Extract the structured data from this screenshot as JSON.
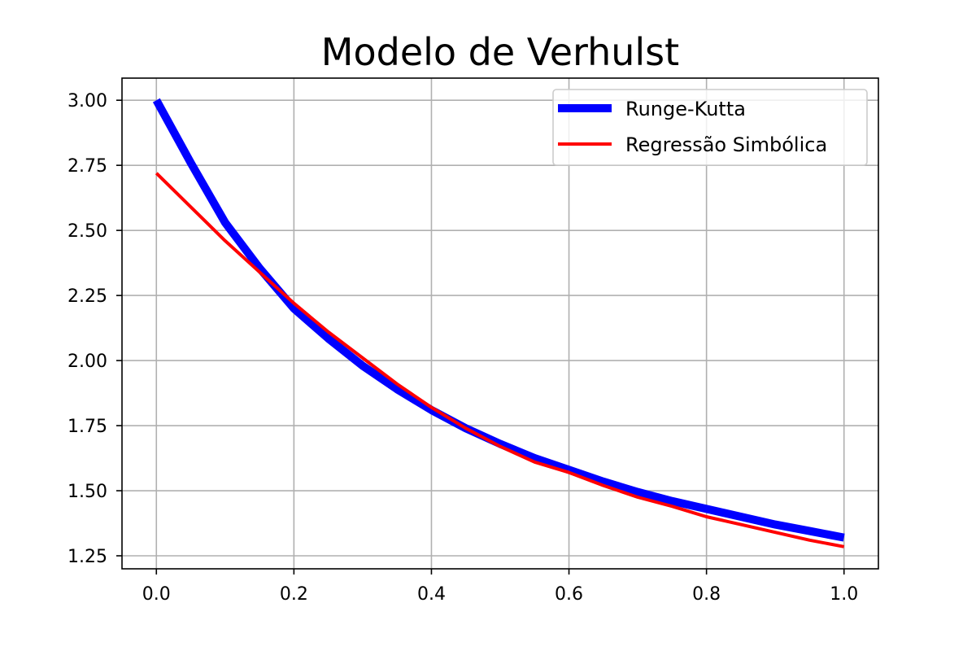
{
  "chart_data": {
    "type": "line",
    "title": "Modelo de Verhulst",
    "xlabel": "",
    "ylabel": "",
    "xlim": [
      -0.05,
      1.05
    ],
    "ylim": [
      1.2,
      3.085
    ],
    "xticks": [
      0.0,
      0.2,
      0.4,
      0.6,
      0.8,
      1.0
    ],
    "xtick_labels": [
      "0.0",
      "0.2",
      "0.4",
      "0.6",
      "0.8",
      "1.0"
    ],
    "yticks": [
      1.25,
      1.5,
      1.75,
      2.0,
      2.25,
      2.5,
      2.75,
      3.0
    ],
    "ytick_labels": [
      "1.25",
      "1.50",
      "1.75",
      "2.00",
      "2.25",
      "2.50",
      "2.75",
      "3.00"
    ],
    "grid": true,
    "legend_position": "upper right",
    "series": [
      {
        "name": "Runge-Kutta",
        "color": "#0000ff",
        "x": [
          0.0,
          0.05,
          0.1,
          0.15,
          0.2,
          0.25,
          0.3,
          0.35,
          0.4,
          0.45,
          0.5,
          0.55,
          0.6,
          0.65,
          0.7,
          0.75,
          0.8,
          0.85,
          0.9,
          0.95,
          1.0
        ],
        "y": [
          3.0,
          2.76,
          2.53,
          2.355,
          2.2,
          2.085,
          1.98,
          1.89,
          1.81,
          1.74,
          1.68,
          1.625,
          1.58,
          1.535,
          1.495,
          1.46,
          1.43,
          1.4,
          1.37,
          1.345,
          1.32
        ]
      },
      {
        "name": "Regressão Simbólica",
        "color": "#ff0000",
        "x": [
          0.0,
          0.05,
          0.1,
          0.15,
          0.2,
          0.25,
          0.3,
          0.35,
          0.4,
          0.45,
          0.5,
          0.55,
          0.6,
          0.65,
          0.7,
          0.75,
          0.8,
          0.85,
          0.9,
          0.95,
          1.0
        ],
        "y": [
          2.72,
          2.59,
          2.46,
          2.34,
          2.22,
          2.11,
          2.01,
          1.91,
          1.82,
          1.74,
          1.67,
          1.61,
          1.57,
          1.52,
          1.475,
          1.44,
          1.4,
          1.37,
          1.34,
          1.31,
          1.285
        ]
      }
    ]
  }
}
